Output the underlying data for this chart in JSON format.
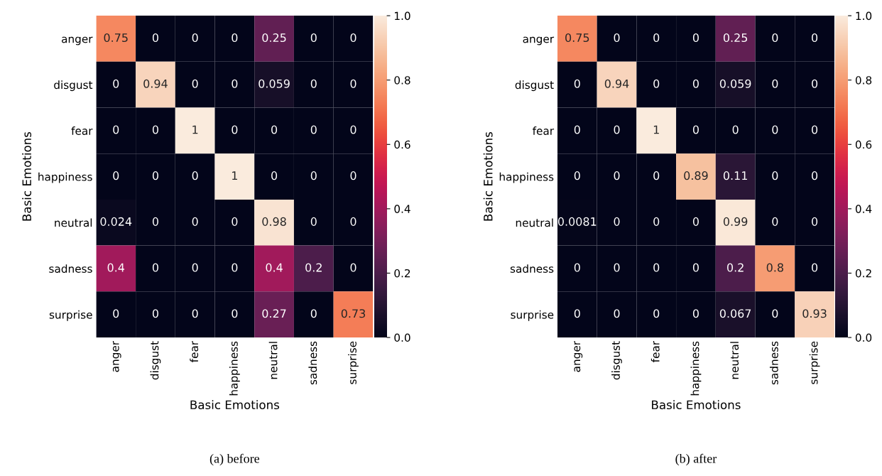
{
  "chart_data": [
    {
      "type": "heatmap",
      "title": "(a) before",
      "xlabel": "Basic Emotions",
      "ylabel": "Basic Emotions",
      "categories": [
        "anger",
        "disgust",
        "fear",
        "happiness",
        "neutral",
        "sadness",
        "surprise"
      ],
      "y_categories": [
        "anger",
        "disgust",
        "fear",
        "happiness",
        "neutral",
        "sadness",
        "surprise"
      ],
      "cells": [
        [
          0.75,
          0,
          0,
          0,
          0.25,
          0,
          0
        ],
        [
          0,
          0.94,
          0,
          0,
          0.059,
          0,
          0
        ],
        [
          0,
          0,
          1,
          0,
          0,
          0,
          0
        ],
        [
          0,
          0,
          0,
          1,
          0,
          0,
          0
        ],
        [
          0.024,
          0,
          0,
          0,
          0.98,
          0,
          0
        ],
        [
          0.4,
          0,
          0,
          0,
          0.4,
          0.2,
          0
        ],
        [
          0,
          0,
          0,
          0,
          0.27,
          0,
          0.73
        ]
      ],
      "data_labels": true,
      "clim": [
        0,
        1
      ],
      "cticks": [
        {
          "value": 0,
          "label": "0.0"
        },
        {
          "value": 0.2,
          "label": "0.2"
        },
        {
          "value": 0.4,
          "label": "0.4"
        },
        {
          "value": 0.6,
          "label": "0.6"
        },
        {
          "value": 0.8,
          "label": "0.8"
        },
        {
          "value": 1,
          "label": "1.0"
        }
      ]
    },
    {
      "type": "heatmap",
      "title": "(b) after",
      "xlabel": "Basic Emotions",
      "ylabel": "Basic Emotions",
      "categories": [
        "anger",
        "disgust",
        "fear",
        "happiness",
        "neutral",
        "sadness",
        "surprise"
      ],
      "y_categories": [
        "anger",
        "disgust",
        "fear",
        "happiness",
        "neutral",
        "sadness",
        "surprise"
      ],
      "cells": [
        [
          0.75,
          0,
          0,
          0,
          0.25,
          0,
          0
        ],
        [
          0,
          0.94,
          0,
          0,
          0.059,
          0,
          0
        ],
        [
          0,
          0,
          1,
          0,
          0,
          0,
          0
        ],
        [
          0,
          0,
          0,
          0.89,
          0.11,
          0,
          0
        ],
        [
          0.0081,
          0,
          0,
          0,
          0.99,
          0,
          0
        ],
        [
          0,
          0,
          0,
          0,
          0.2,
          0.8,
          0
        ],
        [
          0,
          0,
          0,
          0,
          0.067,
          0,
          0.93
        ]
      ],
      "data_labels": true,
      "clim": [
        0,
        1
      ],
      "cticks": [
        {
          "value": 0,
          "label": "0.0"
        },
        {
          "value": 0.2,
          "label": "0.2"
        },
        {
          "value": 0.4,
          "label": "0.4"
        },
        {
          "value": 0.6,
          "label": "0.6"
        },
        {
          "value": 0.8,
          "label": "0.8"
        },
        {
          "value": 1,
          "label": "1.0"
        }
      ]
    }
  ]
}
